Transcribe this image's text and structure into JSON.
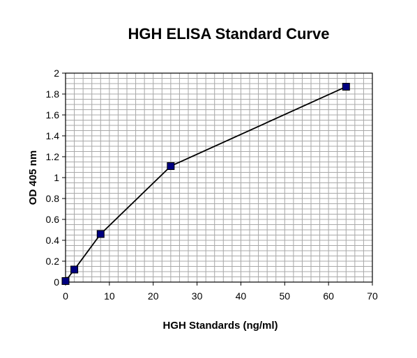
{
  "colors": {
    "background": "#ffffff",
    "plot_background": "#ffffff",
    "grid": "#a8a8a8",
    "line": "#000000",
    "marker_fill": "#000080",
    "marker_stroke": "#000000"
  },
  "chart_data": {
    "type": "line",
    "title": "HGH ELISA Standard Curve",
    "xlabel": "HGH Standards (ng/ml)",
    "ylabel": "OD 405 nm",
    "xlim": [
      0,
      70
    ],
    "ylim": [
      0,
      2
    ],
    "x_major_ticks": [
      0,
      10,
      20,
      30,
      40,
      50,
      60,
      70
    ],
    "y_major_ticks": [
      0,
      0.2,
      0.4,
      0.6,
      0.8,
      1,
      1.2,
      1.4,
      1.6,
      1.8,
      2
    ],
    "x_tick_labels": [
      "0",
      "10",
      "20",
      "30",
      "40",
      "50",
      "60",
      "70"
    ],
    "y_tick_labels": [
      "0",
      "0.2",
      "0.4",
      "0.6",
      "0.8",
      "1",
      "1.2",
      "1.4",
      "1.6",
      "1.8",
      "2"
    ],
    "x_minor_step": 2,
    "y_minor_step": 0.05,
    "grid": true,
    "legend": false,
    "marker": "square",
    "series": [
      {
        "x": [
          0,
          2,
          8,
          24,
          64
        ],
        "values": [
          0.01,
          0.12,
          0.46,
          1.11,
          1.87
        ]
      }
    ]
  }
}
